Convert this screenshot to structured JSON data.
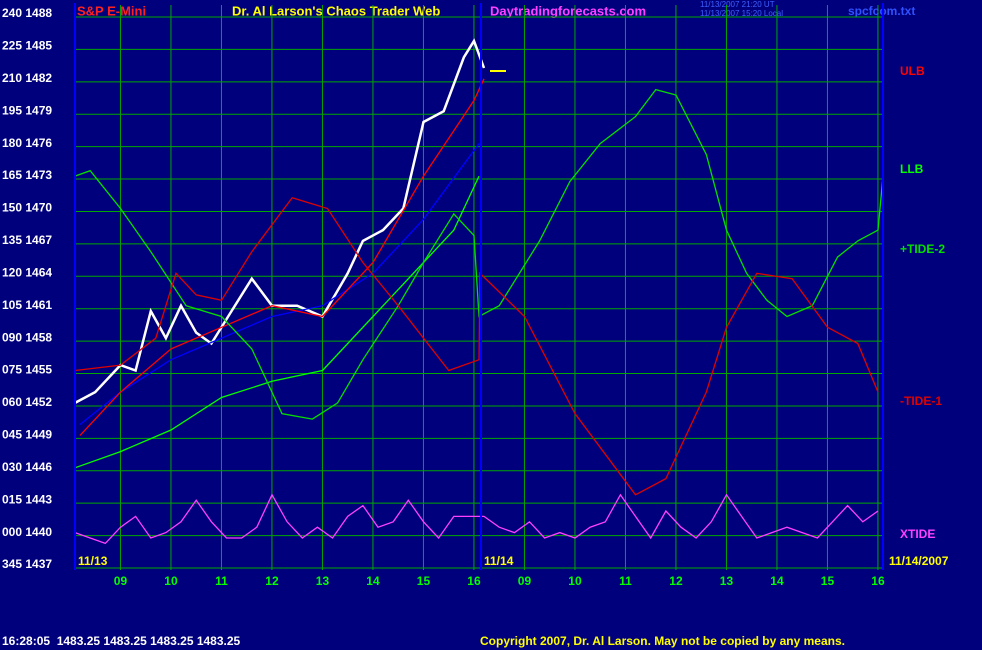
{
  "chart_data": {
    "type": "line",
    "subtitle": "S&P E-Mini",
    "title": "Dr. Al Larson's Chaos Trader Web",
    "website": "Daytradingforecasts.com",
    "timestamps": [
      "11/13/2007 21:20 UT",
      "11/13/2007 15:20 Local"
    ],
    "file_name": "spcfcom.txt",
    "session_labels": [
      "11/13",
      "11/14",
      "11/14/2007"
    ],
    "quote_line": "16:28:05  1483.25 1483.25 1483.25 1483.25",
    "copyright": "Copyright 2007, Dr. Al Larson. May not be copied by any means.",
    "ylim": [
      1437,
      1488
    ],
    "yticks": [
      {
        "value": 1488,
        "label": "240 1488"
      },
      {
        "value": 1485,
        "label": "225 1485"
      },
      {
        "value": 1482,
        "label": "210 1482"
      },
      {
        "value": 1479,
        "label": "195 1479"
      },
      {
        "value": 1476,
        "label": "180 1476"
      },
      {
        "value": 1473,
        "label": "165 1473"
      },
      {
        "value": 1470,
        "label": "150 1470"
      },
      {
        "value": 1467,
        "label": "135 1467"
      },
      {
        "value": 1464,
        "label": "120 1464"
      },
      {
        "value": 1461,
        "label": "105 1461"
      },
      {
        "value": 1458,
        "label": "090 1458"
      },
      {
        "value": 1455,
        "label": "075 1455"
      },
      {
        "value": 1452,
        "label": "060 1452"
      },
      {
        "value": 1449,
        "label": "045 1449"
      },
      {
        "value": 1446,
        "label": "030 1446"
      },
      {
        "value": 1443,
        "label": "015 1443"
      },
      {
        "value": 1440,
        "label": "000 1440"
      },
      {
        "value": 1437,
        "label": "345 1437"
      }
    ],
    "xlim": [
      8.1,
      24.1
    ],
    "xticks": [
      {
        "value": 9,
        "label": "09"
      },
      10,
      11,
      12,
      13,
      14,
      15,
      16,
      {
        "value": 17,
        "label": "09"
      },
      {
        "value": 18,
        "label": "10"
      },
      {
        "value": 19,
        "label": "11"
      },
      {
        "value": 20,
        "label": "12"
      },
      {
        "value": 21,
        "label": "13"
      },
      {
        "value": 22,
        "label": "14"
      },
      {
        "value": 23,
        "label": "15"
      },
      {
        "value": 24,
        "label": "16"
      }
    ],
    "grid": true,
    "series": [
      {
        "color": "#ffffff",
        "x": [
          8.1,
          8.5,
          9.0,
          9.3,
          9.6,
          9.9,
          10.2,
          10.5,
          10.8,
          11.2,
          11.6,
          12.0,
          12.5,
          13.0,
          13.5,
          13.8,
          14.2,
          14.6,
          15.0,
          15.4,
          15.8,
          16.0,
          16.2
        ],
        "values": [
          1452,
          1453,
          1455.5,
          1455,
          1460.5,
          1458,
          1461,
          1458.5,
          1457.5,
          1460.5,
          1463.5,
          1461,
          1461,
          1460,
          1464,
          1467,
          1468,
          1470,
          1478,
          1479,
          1484,
          1485.5,
          1483
        ]
      },
      {
        "color": "#0000ff",
        "x": [
          8.2,
          9.0,
          10.0,
          11.0,
          12.0,
          13.0,
          14.0,
          15.0,
          16.1
        ],
        "values": [
          1450,
          1453,
          1456,
          1458,
          1460,
          1461,
          1464,
          1469,
          1476
        ]
      },
      {
        "name": "ULB",
        "color": "#ff0000",
        "x": [
          8.2,
          9.0,
          10.0,
          11.0,
          12.0,
          13.0,
          14.0,
          15.0,
          16.0,
          16.2
        ],
        "values": [
          1449,
          1453,
          1457,
          1459,
          1461,
          1460,
          1465,
          1473,
          1480,
          1482
        ]
      },
      {
        "name": "LLB",
        "color": "#00ff00",
        "x": [
          8.1,
          9.0,
          10.0,
          11.0,
          12.0,
          13.0,
          14.0,
          15.0,
          15.6,
          16.1
        ],
        "values": [
          1446,
          1447.5,
          1449.5,
          1452.5,
          1454,
          1455,
          1460,
          1465,
          1468,
          1473
        ]
      },
      {
        "name": "+TIDE-2",
        "color": "#00e000",
        "x": [
          8.1,
          8.4,
          9.0,
          9.6,
          10.3,
          11.0,
          11.6,
          12.2,
          12.8,
          13.3,
          13.8,
          14.5,
          15.0,
          15.6,
          16.0,
          16.1,
          16.5,
          17.3,
          17.9,
          18.5,
          19.2,
          19.6,
          20.0,
          20.6,
          21.0,
          21.4,
          21.8,
          22.2,
          22.7,
          23.2,
          23.6,
          24.0,
          24.1
        ],
        "values": [
          1473,
          1473.5,
          1470,
          1466,
          1461,
          1460,
          1457,
          1451,
          1450.5,
          1452,
          1456,
          1461,
          1465,
          1469.5,
          1467.5,
          1460,
          1461,
          1467,
          1472.5,
          1476,
          1478.5,
          1481,
          1480.5,
          1475,
          1468,
          1464,
          1461.5,
          1460,
          1461,
          1465.5,
          1467,
          1468,
          1473
        ]
      },
      {
        "name": "-TIDE-1",
        "color": "#e00000",
        "x": [
          8.1,
          9.0,
          9.7,
          10.1,
          10.5,
          11.0,
          11.6,
          12.4,
          13.1,
          13.8,
          14.5,
          15.5,
          16.1,
          16.12,
          17.0,
          18.0,
          18.8,
          19.2,
          19.8,
          20.6,
          21.0,
          21.6,
          22.3,
          23.0,
          23.6,
          24.0
        ],
        "values": [
          1455,
          1455.5,
          1458,
          1464,
          1462,
          1461.5,
          1466,
          1471,
          1470,
          1465,
          1461,
          1455,
          1456,
          1464,
          1460,
          1451,
          1446,
          1443.5,
          1445,
          1453,
          1459,
          1464,
          1463.5,
          1459,
          1457.5,
          1453
        ]
      },
      {
        "name": "XTIDE",
        "color": "#ff40ff",
        "x": [
          8.1,
          8.4,
          8.7,
          9.0,
          9.3,
          9.6,
          9.9,
          10.2,
          10.5,
          10.8,
          11.1,
          11.4,
          11.7,
          12.0,
          12.3,
          12.6,
          12.9,
          13.2,
          13.5,
          13.8,
          14.1,
          14.4,
          14.7,
          15.0,
          15.3,
          15.6,
          15.9,
          16.2,
          16.5,
          16.8,
          17.1,
          17.4,
          17.7,
          18.0,
          18.3,
          18.6,
          18.9,
          19.2,
          19.5,
          19.8,
          20.1,
          20.4,
          20.7,
          21.0,
          21.3,
          21.6,
          21.9,
          22.2,
          22.5,
          22.8,
          23.1,
          23.4,
          23.7,
          24.0
        ],
        "values": [
          1440,
          1439.5,
          1439,
          1440.5,
          1441.5,
          1439.5,
          1440,
          1441,
          1443,
          1441,
          1439.5,
          1439.5,
          1440.5,
          1443.5,
          1441,
          1439.5,
          1440.5,
          1439.5,
          1441.5,
          1442.5,
          1440.5,
          1441,
          1443,
          1441,
          1439.5,
          1441.5,
          1441.5,
          1441.5,
          1440.5,
          1440,
          1441,
          1439.5,
          1440,
          1439.5,
          1440.5,
          1441,
          1443.5,
          1441.5,
          1439.5,
          1442,
          1440.5,
          1439.5,
          1441,
          1443.5,
          1441.5,
          1439.5,
          1440,
          1440.5,
          1440,
          1439.5,
          1441,
          1442.5,
          1441,
          1442
        ]
      }
    ]
  }
}
